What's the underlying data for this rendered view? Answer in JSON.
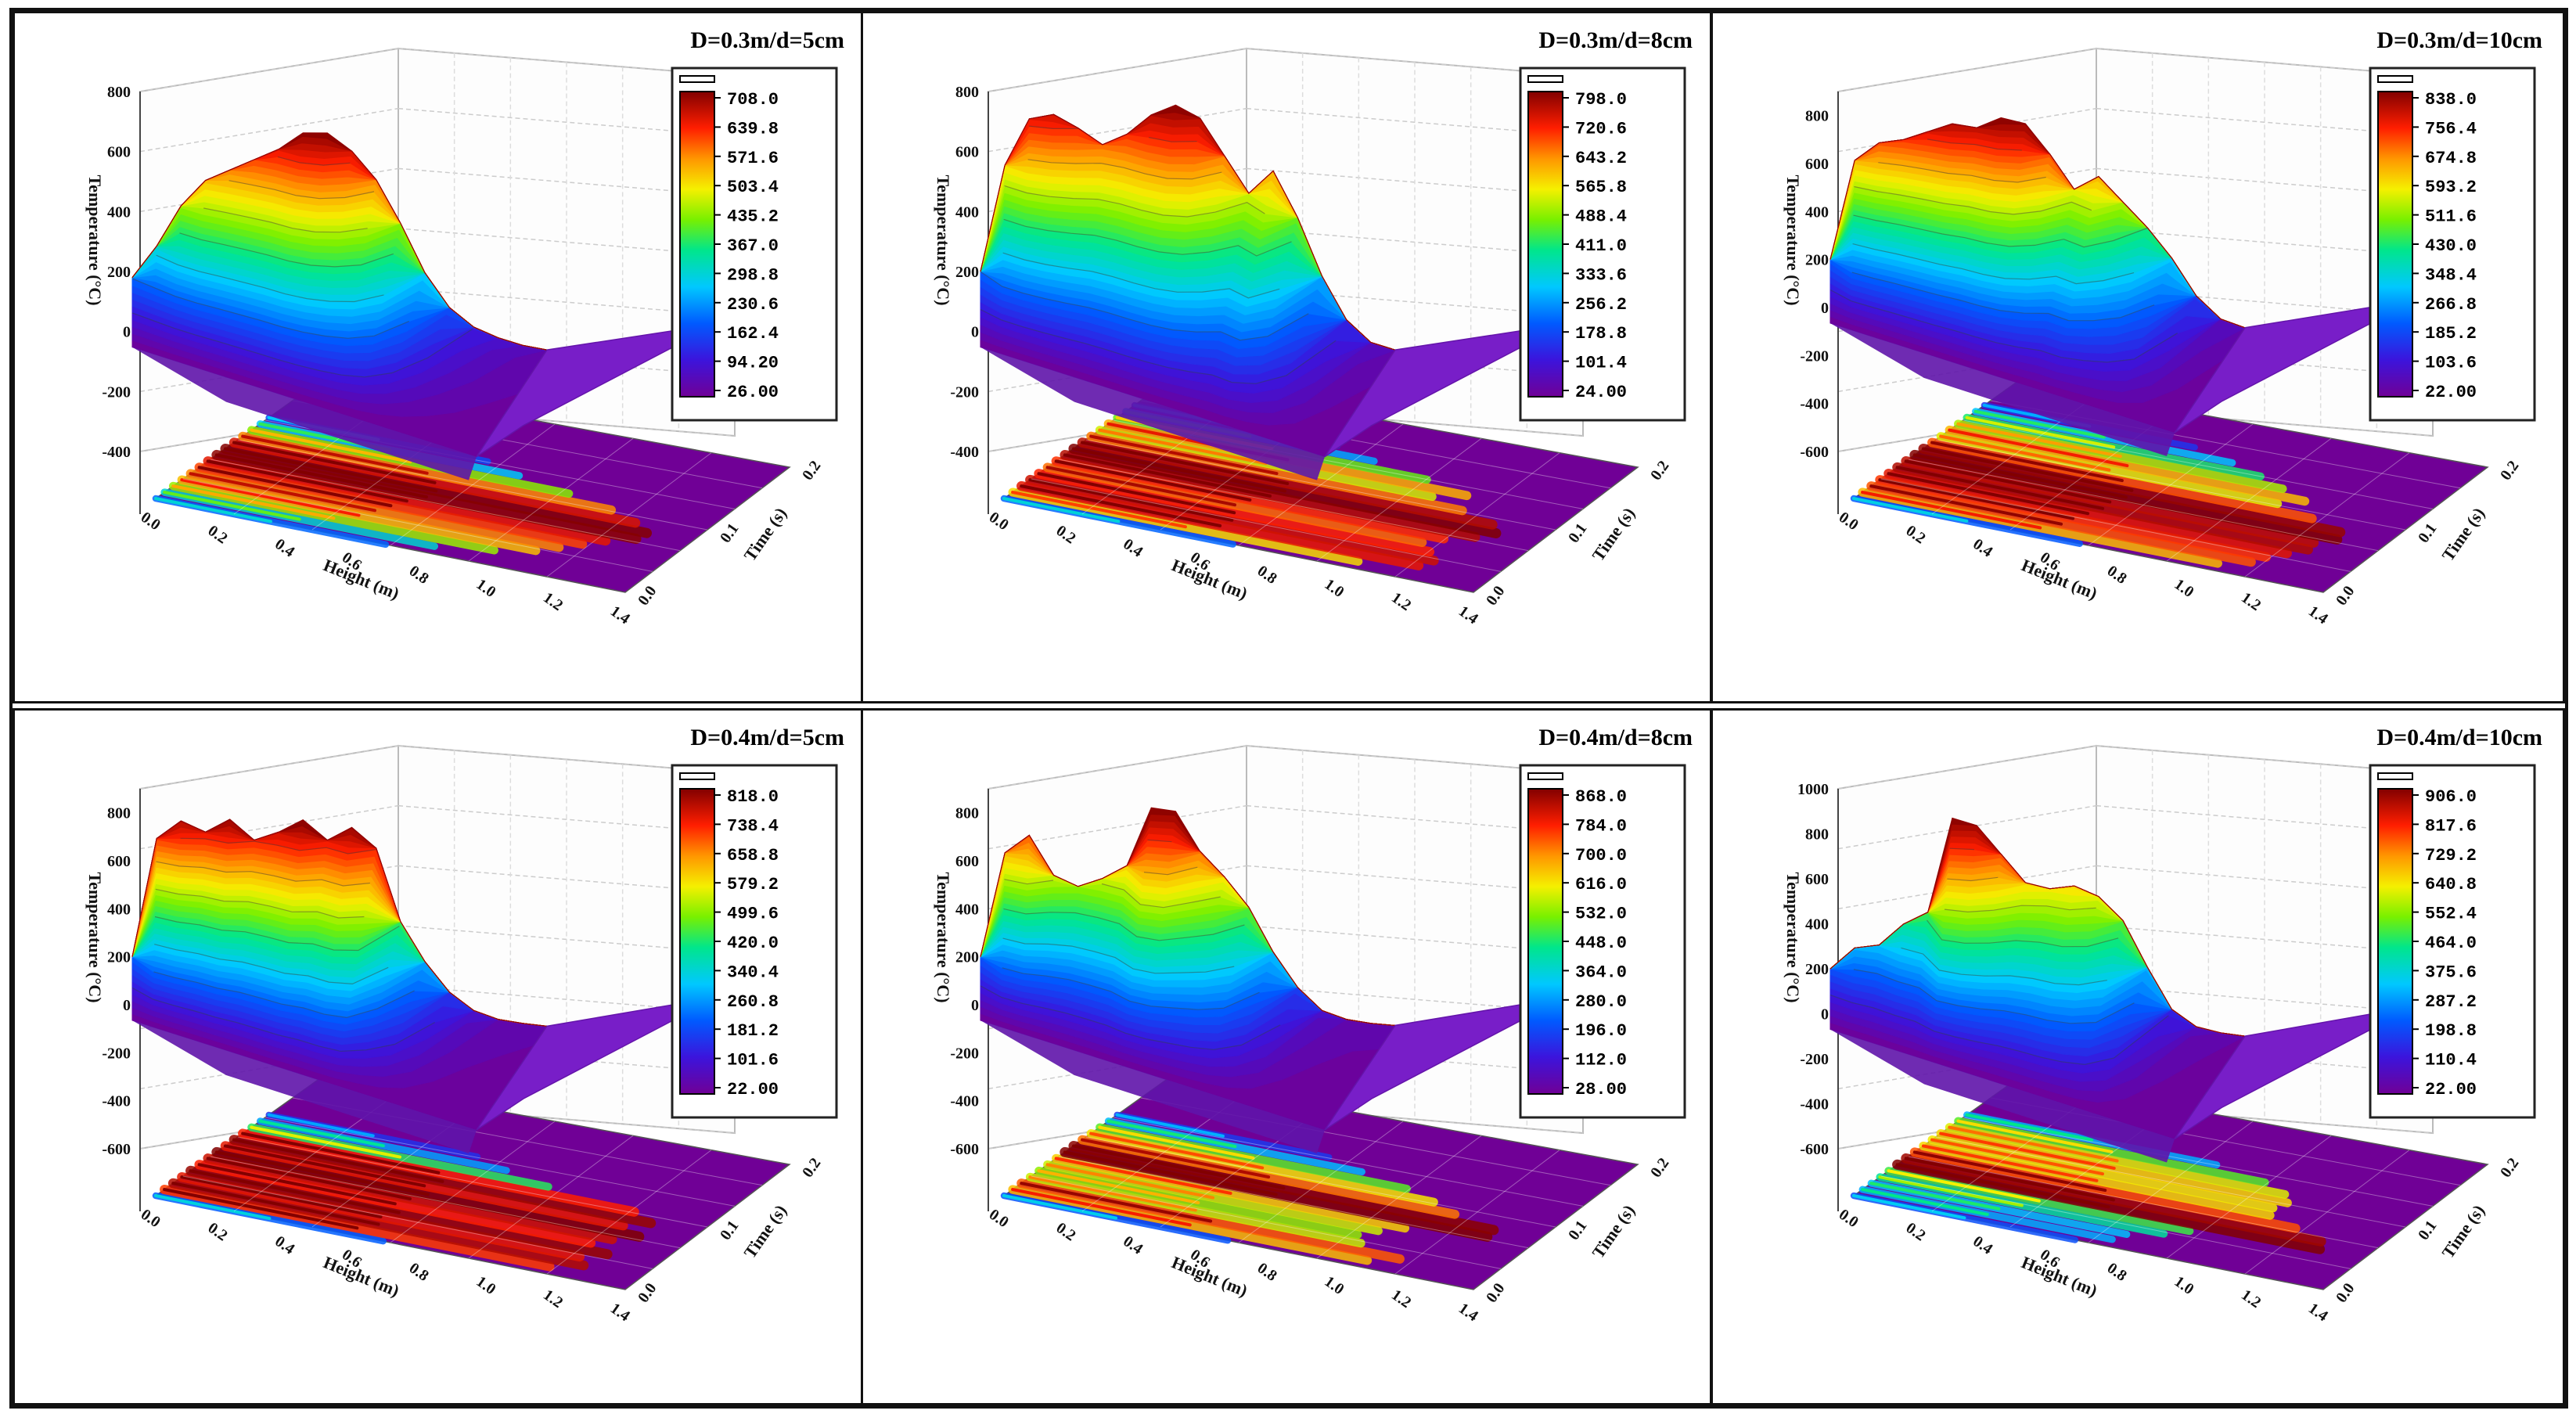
{
  "chart_data": [
    {
      "type": "3d-surface",
      "title": "D=0.3m/d=5cm",
      "zlabel": "Temperature (°C)",
      "xlabel": "Height (m)",
      "ylabel": "Time (s)",
      "ztick_labels": [
        "800",
        "600",
        "400",
        "200",
        "0",
        "-200",
        "-400"
      ],
      "zlim": [
        -400,
        800
      ],
      "xtick_labels": [
        "0.0",
        "0.2",
        "0.4",
        "0.6",
        "0.8",
        "1.0",
        "1.2",
        "1.4"
      ],
      "ytick_labels": [
        "0.0",
        "0.1",
        "0.2"
      ],
      "colorbar_ticks": [
        "708.0",
        "639.8",
        "571.6",
        "503.4",
        "435.2",
        "367.0",
        "298.8",
        "230.6",
        "162.4",
        "94.20",
        "26.00"
      ],
      "profile": [
        180,
        290,
        430,
        520,
        560,
        600,
        640,
        700,
        705,
        650,
        560,
        420,
        260,
        150,
        90,
        60,
        40,
        30
      ],
      "peak_temperature": 708
    },
    {
      "type": "3d-surface",
      "title": "D=0.3m/d=8cm",
      "zlabel": "Temperature (°C)",
      "xlabel": "Height (m)",
      "ylabel": "Time (s)",
      "ztick_labels": [
        "800",
        "600",
        "400",
        "200",
        "0",
        "-200",
        "-400"
      ],
      "zlim": [
        -400,
        800
      ],
      "xtick_labels": [
        "0.0",
        "0.2",
        "0.4",
        "0.6",
        "0.8",
        "1.0",
        "1.2",
        "1.4"
      ],
      "ytick_labels": [
        "0.0",
        "0.1",
        "0.2"
      ],
      "colorbar_ticks": [
        "798.0",
        "720.6",
        "643.2",
        "565.8",
        "488.4",
        "411.0",
        "333.6",
        "256.2",
        "178.8",
        "101.4",
        "24.00"
      ],
      "profile": [
        200,
        560,
        720,
        740,
        700,
        650,
        690,
        760,
        798,
        760,
        640,
        520,
        600,
        450,
        260,
        120,
        50,
        30
      ],
      "peak_temperature": 798
    },
    {
      "type": "3d-surface",
      "title": "D=0.3m/d=10cm",
      "zlabel": "Temperature (°C)",
      "xlabel": "Height (m)",
      "ylabel": "Time (s)",
      "ztick_labels": [
        "800",
        "600",
        "400",
        "200",
        "0",
        "-200",
        "-400",
        "-600"
      ],
      "zlim": [
        -600,
        900
      ],
      "xtick_labels": [
        "0.0",
        "0.2",
        "0.4",
        "0.6",
        "0.8",
        "1.0",
        "1.2",
        "1.4"
      ],
      "ytick_labels": [
        "0.0",
        "0.1",
        "0.2"
      ],
      "colorbar_ticks": [
        "838.0",
        "756.4",
        "674.8",
        "593.2",
        "511.6",
        "430.0",
        "348.4",
        "266.8",
        "185.2",
        "103.6",
        "22.00"
      ],
      "profile": [
        200,
        620,
        700,
        720,
        760,
        800,
        790,
        838,
        820,
        700,
        560,
        620,
        520,
        420,
        300,
        150,
        60,
        30
      ],
      "peak_temperature": 838
    },
    {
      "type": "3d-surface",
      "title": "D=0.4m/d=5cm",
      "zlabel": "Temperature (°C)",
      "xlabel": "Height (m)",
      "ylabel": "Time (s)",
      "ztick_labels": [
        "800",
        "600",
        "400",
        "200",
        "0",
        "-200",
        "-400",
        "-600"
      ],
      "zlim": [
        -600,
        900
      ],
      "xtick_labels": [
        "0.0",
        "0.2",
        "0.4",
        "0.6",
        "0.8",
        "1.0",
        "1.2",
        "1.4"
      ],
      "ytick_labels": [
        "0.0",
        "0.1",
        "0.2"
      ],
      "colorbar_ticks": [
        "818.0",
        "738.4",
        "658.8",
        "579.2",
        "499.6",
        "420.0",
        "340.4",
        "260.8",
        "181.2",
        "101.6",
        "22.00"
      ],
      "profile": [
        200,
        700,
        780,
        740,
        800,
        720,
        760,
        818,
        740,
        800,
        720,
        420,
        260,
        140,
        70,
        40,
        30,
        25
      ],
      "peak_temperature": 818
    },
    {
      "type": "3d-surface",
      "title": "D=0.4m/d=8cm",
      "zlabel": "Temperature (°C)",
      "xlabel": "Height (m)",
      "ylabel": "Time (s)",
      "ztick_labels": [
        "800",
        "600",
        "400",
        "200",
        "0",
        "-200",
        "-400",
        "-600"
      ],
      "zlim": [
        -600,
        900
      ],
      "xtick_labels": [
        "0.0",
        "0.2",
        "0.4",
        "0.6",
        "0.8",
        "1.0",
        "1.2",
        "1.4"
      ],
      "ytick_labels": [
        "0.0",
        "0.1",
        "0.2"
      ],
      "colorbar_ticks": [
        "868.0",
        "784.0",
        "700.0",
        "616.0",
        "532.0",
        "448.0",
        "364.0",
        "280.0",
        "196.0",
        "112.0",
        "28.00"
      ],
      "profile": [
        200,
        640,
        720,
        560,
        520,
        560,
        620,
        868,
        860,
        700,
        600,
        480,
        300,
        160,
        70,
        40,
        30,
        28
      ],
      "peak_temperature": 868
    },
    {
      "type": "3d-surface",
      "title": "D=0.4m/d=10cm",
      "zlabel": "Temperature (°C)",
      "xlabel": "Height (m)",
      "ylabel": "Time (s)",
      "ztick_labels": [
        "1000",
        "800",
        "600",
        "400",
        "200",
        "0",
        "-200",
        "-400",
        "-600"
      ],
      "zlim": [
        -600,
        1000
      ],
      "xtick_labels": [
        "0.0",
        "0.2",
        "0.4",
        "0.6",
        "0.8",
        "1.0",
        "1.2",
        "1.4"
      ],
      "ytick_labels": [
        "0.0",
        "0.1",
        "0.2"
      ],
      "colorbar_ticks": [
        "906.0",
        "817.6",
        "729.2",
        "640.8",
        "552.4",
        "464.0",
        "375.6",
        "287.2",
        "198.8",
        "110.4",
        "22.00"
      ],
      "profile": [
        200,
        300,
        320,
        420,
        480,
        906,
        880,
        760,
        640,
        620,
        640,
        600,
        500,
        300,
        120,
        50,
        30,
        22
      ],
      "peak_temperature": 906
    }
  ]
}
